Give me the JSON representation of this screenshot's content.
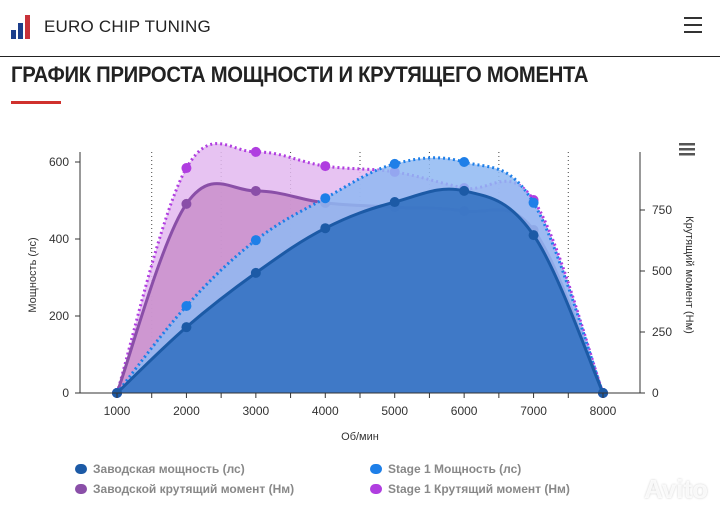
{
  "header": {
    "brand": "EURO CHIP TUNING",
    "menu_icon": "hamburger-icon"
  },
  "page": {
    "title": "ГРАФИК ПРИРОСТА МОЩНОСТИ И КРУТЯЩЕГО МОМЕНТА",
    "watermark": "Avito"
  },
  "chart_data": {
    "type": "area",
    "xlabel": "Об/мин",
    "ylabel_left": "Мощность (лс)",
    "ylabel_right": "Крутящий момент (Нм)",
    "x": [
      1000,
      2000,
      3000,
      4000,
      5000,
      6000,
      7000,
      8000
    ],
    "x_ticks": [
      "1000",
      "2000",
      "3000",
      "4000",
      "5000",
      "6000",
      "7000",
      "8000"
    ],
    "ylim_left": [
      0,
      600
    ],
    "y_ticks_left": [
      "0",
      "200",
      "400",
      "600"
    ],
    "ylim_right": [
      0,
      950
    ],
    "y_ticks_right": [
      "0",
      "250",
      "500",
      "750"
    ],
    "grid": "vertical dotted",
    "legend_placement": "bottom",
    "series": [
      {
        "name": "Stage 1 Крутящий момент (Нм)",
        "axis": "right",
        "style": "dotted",
        "color": "#b03ee0",
        "fill": "#e3b8f0",
        "values": [
          0,
          922,
          988,
          930,
          906,
          840,
          791,
          0
        ]
      },
      {
        "name": "Заводской крутящий момент (Нм)",
        "axis": "right",
        "style": "solid",
        "color": "#8a4fa8",
        "fill": "#c98fcb",
        "values": [
          0,
          775,
          828,
          779,
          762,
          746,
          668,
          0
        ]
      },
      {
        "name": "Stage 1 Мощность (лс)",
        "axis": "left",
        "style": "dotted",
        "color": "#1e7fe8",
        "fill": "#8fb8f2",
        "values": [
          0,
          226,
          397,
          506,
          595,
          600,
          494,
          0
        ]
      },
      {
        "name": "Заводская мощность (лс)",
        "axis": "left",
        "style": "solid",
        "color": "#1c5aa6",
        "fill": "#2f6fbf",
        "values": [
          0,
          171,
          312,
          428,
          496,
          525,
          410,
          0
        ]
      }
    ],
    "legend_order": [
      3,
      2,
      1,
      0
    ]
  }
}
